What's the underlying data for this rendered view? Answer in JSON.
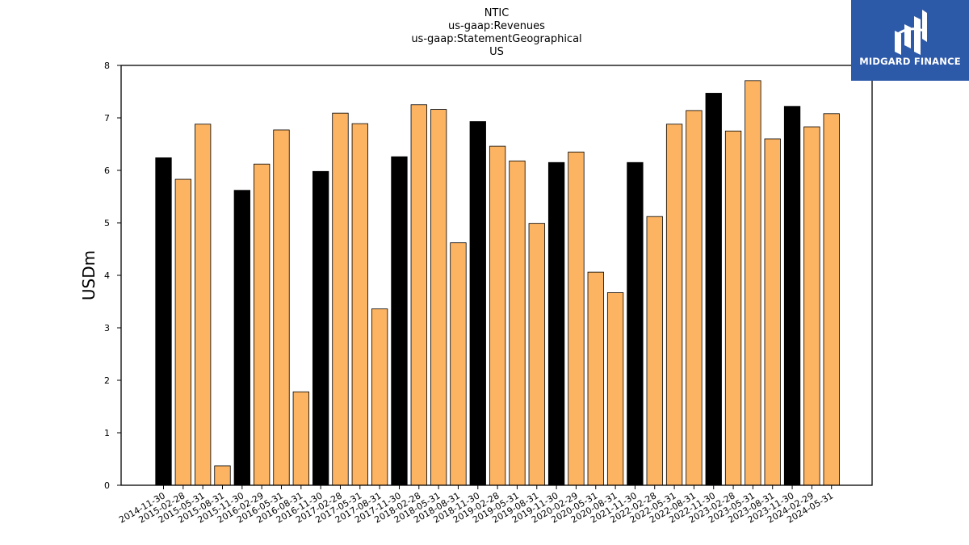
{
  "chart_data": {
    "type": "bar",
    "title": [
      "NTIC",
      "us-gaap:Revenues",
      "us-gaap:StatementGeographical",
      "US"
    ],
    "xlabel": "",
    "ylabel": "USDm",
    "ylim": [
      0,
      8
    ],
    "yticks": [
      0,
      1,
      2,
      3,
      4,
      5,
      6,
      7,
      8
    ],
    "grid": false,
    "colors": {
      "fiscal_year_end": "#000000",
      "quarter": "#fdb462",
      "edge": "#000000"
    },
    "categories": [
      "2014-11-30",
      "2015-02-28",
      "2015-05-31",
      "2015-08-31",
      "2015-11-30",
      "2016-02-29",
      "2016-05-31",
      "2016-08-31",
      "2016-11-30",
      "2017-02-28",
      "2017-05-31",
      "2017-08-31",
      "2017-11-30",
      "2018-02-28",
      "2018-05-31",
      "2018-08-31",
      "2018-11-30",
      "2019-02-28",
      "2019-05-31",
      "2019-08-31",
      "2019-11-30",
      "2020-02-29",
      "2020-05-31",
      "2020-08-31",
      "2021-11-30",
      "2022-02-28",
      "2022-05-31",
      "2022-08-31",
      "2022-11-30",
      "2023-02-28",
      "2023-05-31",
      "2023-08-31",
      "2023-11-30",
      "2024-02-29",
      "2024-05-31"
    ],
    "values": [
      6.24,
      5.83,
      6.88,
      0.37,
      5.62,
      6.12,
      6.77,
      1.78,
      5.98,
      7.09,
      6.89,
      3.36,
      6.26,
      7.25,
      7.16,
      4.62,
      6.93,
      6.46,
      6.18,
      4.99,
      6.15,
      6.35,
      4.06,
      3.67,
      6.15,
      5.12,
      6.88,
      7.14,
      7.47,
      6.75,
      7.71,
      6.6,
      7.22,
      6.83,
      7.08
    ],
    "fiscal_year_end": [
      true,
      false,
      false,
      false,
      true,
      false,
      false,
      false,
      true,
      false,
      false,
      false,
      true,
      false,
      false,
      false,
      true,
      false,
      false,
      false,
      true,
      false,
      false,
      false,
      true,
      false,
      false,
      false,
      true,
      false,
      false,
      false,
      true,
      false,
      false
    ]
  },
  "logo": {
    "text": "MIDGARD FINANCE",
    "icon": "midgard-finance-logo-icon"
  }
}
